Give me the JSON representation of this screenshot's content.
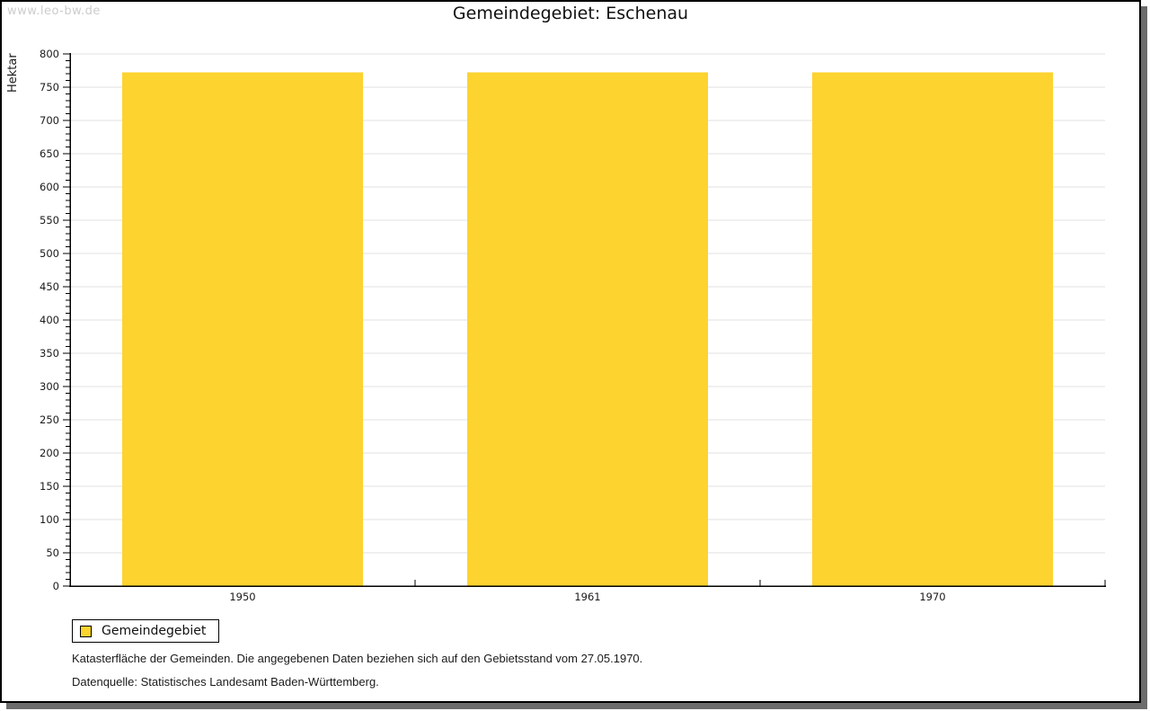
{
  "watermark": "www.leo-bw.de",
  "header": {
    "title": "Gemeindegebiet: Eschenau"
  },
  "legend": {
    "label": "Gemeindegebiet"
  },
  "footnotes": {
    "line1": "Katasterfläche der Gemeinden. Die angegebenen Daten beziehen sich auf den Gebietsstand vom 27.05.1970.",
    "line2": "Datenquelle: Statistisches Landesamt Baden-Württemberg."
  },
  "chart_data": {
    "type": "bar",
    "title": "Gemeindegebiet: Eschenau",
    "categories": [
      "1950",
      "1961",
      "1970"
    ],
    "values": [
      772,
      772,
      772
    ],
    "series_name": "Gemeindegebiet",
    "xlabel": "",
    "ylabel": "Hektar",
    "ylim": [
      0,
      800
    ],
    "y_major_step": 50,
    "y_minor_step": 10,
    "grid": "horizontal-major-only",
    "legend_position": "bottom-left",
    "bar_color": "#fdd32f",
    "grid_color": "#e2e2e2",
    "axis_color": "#000000",
    "text_color": "#1a1a1a"
  }
}
